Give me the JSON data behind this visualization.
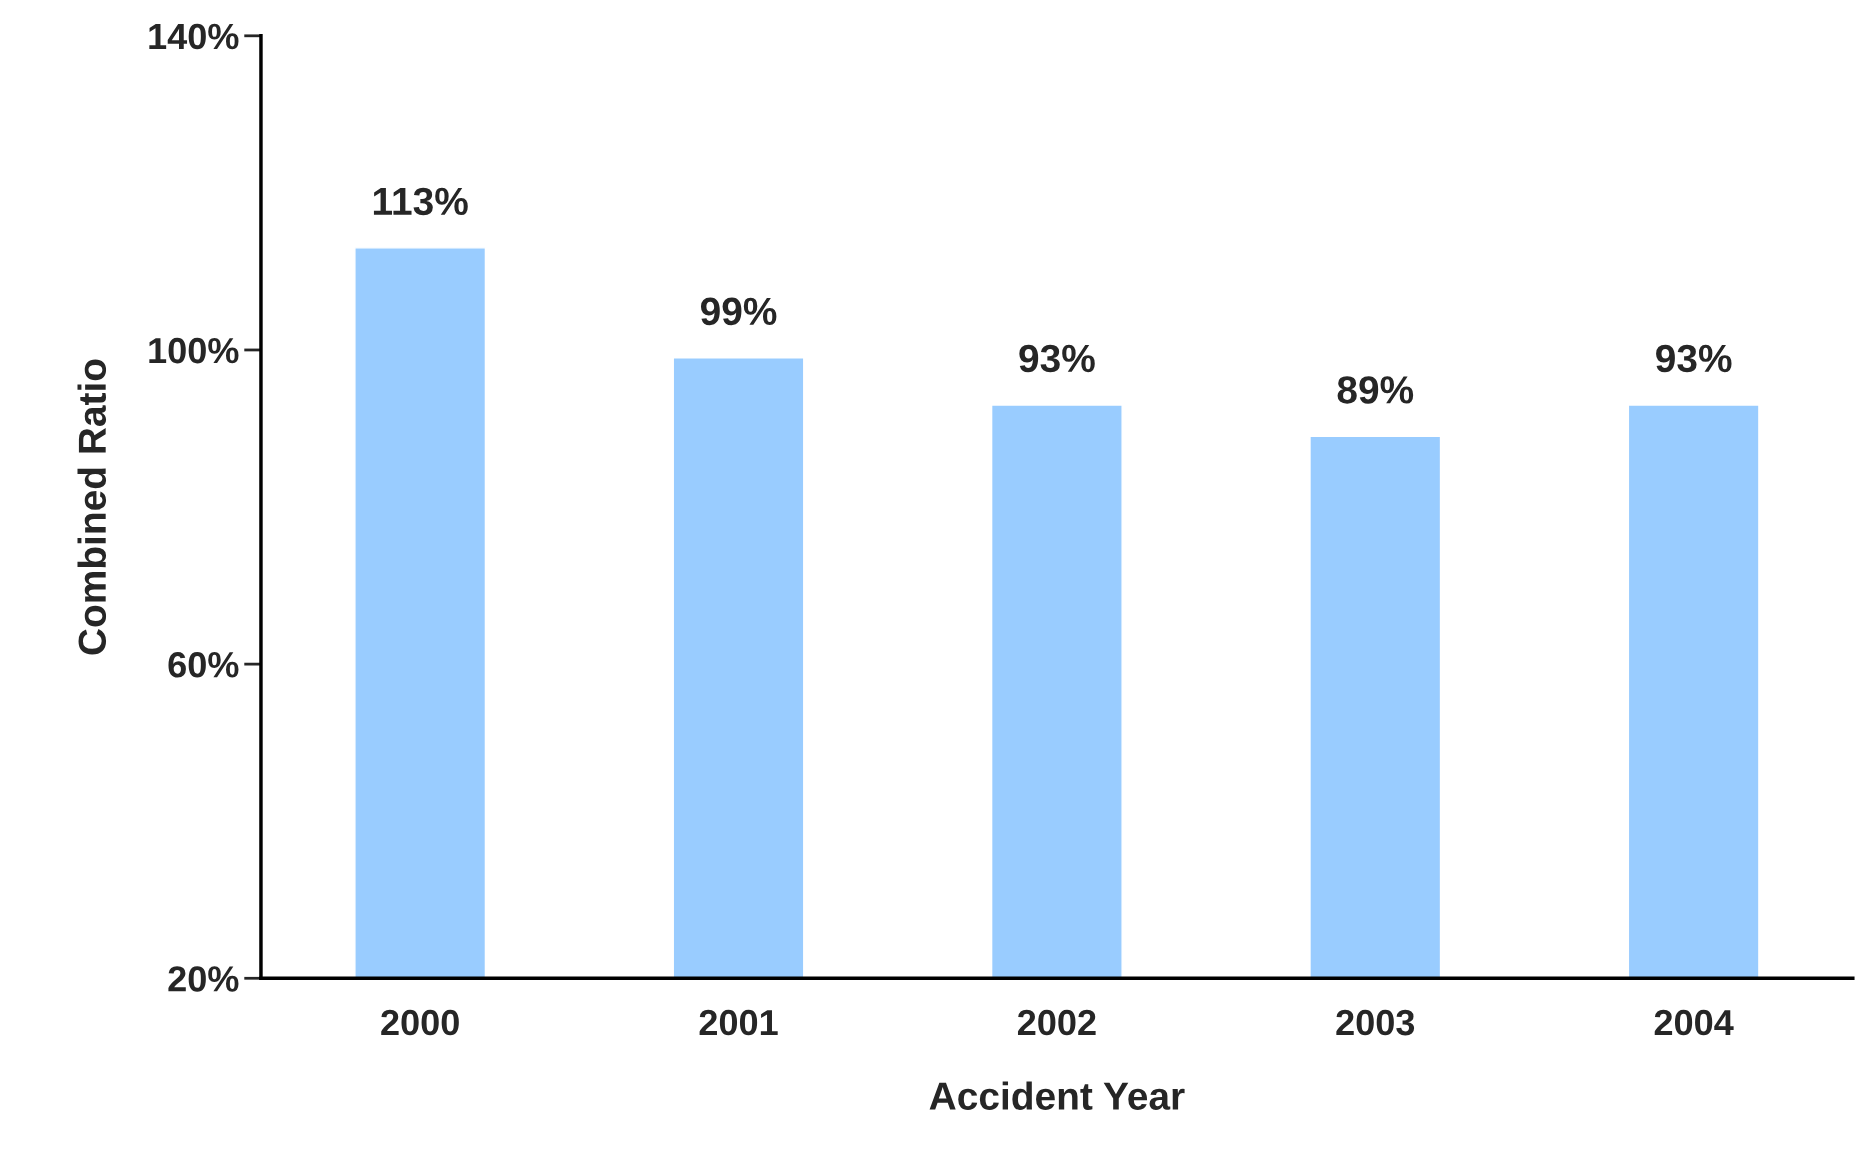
{
  "chart_data": {
    "type": "bar",
    "xlabel": "Accident Year",
    "ylabel": "Combined Ratio",
    "categories": [
      "2000",
      "2001",
      "2002",
      "2003",
      "2004"
    ],
    "values": [
      113,
      99,
      93,
      89,
      93
    ],
    "color": "#99ccff",
    "value_labels": [
      "113%",
      "99%",
      "93%",
      "89%",
      "93%"
    ],
    "ylim": [
      20,
      140
    ],
    "yticks": [
      {
        "value": 20,
        "label": "20%"
      },
      {
        "value": 60,
        "label": "60%"
      },
      {
        "value": 100,
        "label": "100%"
      },
      {
        "value": 140,
        "label": "140%"
      }
    ],
    "grid": false,
    "legend": false
  }
}
